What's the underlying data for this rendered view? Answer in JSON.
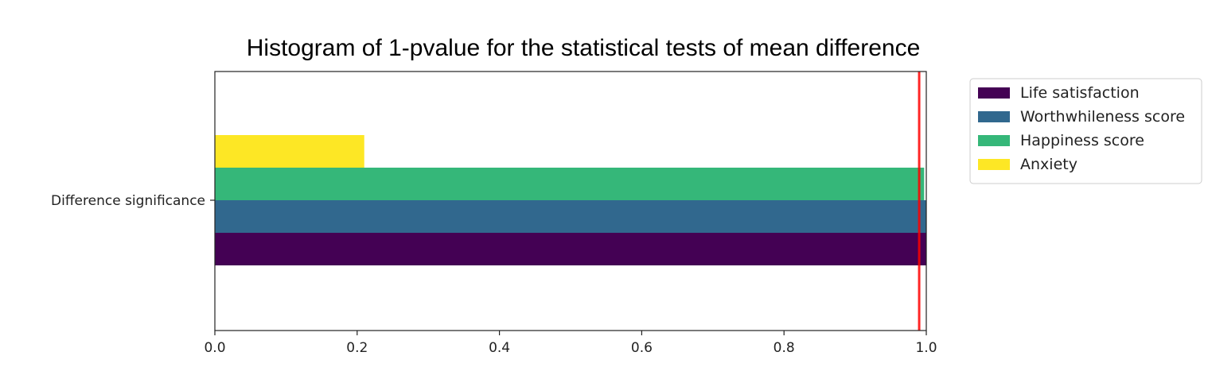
{
  "chart_data": {
    "type": "bar",
    "orientation": "horizontal",
    "title": "Histogram of 1-pvalue for the statistical tests of mean difference",
    "xlabel": "",
    "ylabel": "",
    "categories": [
      "Difference significance"
    ],
    "series": [
      {
        "name": "Life satisfaction",
        "values": [
          1.0
        ],
        "color": "#440154"
      },
      {
        "name": "Worthwhileness score",
        "values": [
          1.0
        ],
        "color": "#31688e"
      },
      {
        "name": "Happiness score",
        "values": [
          0.997
        ],
        "color": "#35b779"
      },
      {
        "name": "Anxiety",
        "values": [
          0.21
        ],
        "color": "#fde725"
      }
    ],
    "xlim": [
      0.0,
      1.0
    ],
    "xticks": [
      "0.0",
      "0.2",
      "0.4",
      "0.6",
      "0.8",
      "1.0"
    ],
    "threshold_line": {
      "value": 0.99,
      "color": "#ff0000"
    },
    "grid": false,
    "legend_position": "upper right, outside plot"
  }
}
